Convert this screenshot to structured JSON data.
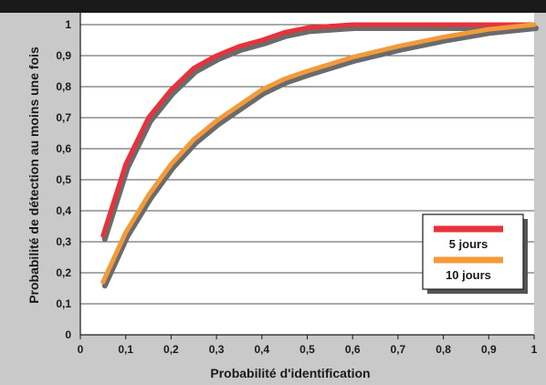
{
  "chart_data": {
    "type": "line",
    "xlabel": "Probabilité d'identification",
    "ylabel": "Probabilité de détection au moins une fois",
    "xlim": [
      0,
      1
    ],
    "ylim": [
      0,
      1
    ],
    "x_ticks": [
      "0",
      "0,1",
      "0,2",
      "0,3",
      "0,4",
      "0,5",
      "0,6",
      "0,7",
      "0,8",
      "0,9",
      "1"
    ],
    "y_ticks": [
      "0",
      "0,1",
      "0,2",
      "0,3",
      "0,4",
      "0,5",
      "0,6",
      "0,7",
      "0,8",
      "0,9",
      "1"
    ],
    "grid": "horizontal",
    "legend_position": "right",
    "series": [
      {
        "name": "5 jours",
        "color": "#e8323c",
        "x": [
          0.05,
          0.1,
          0.15,
          0.2,
          0.25,
          0.3,
          0.35,
          0.4,
          0.45,
          0.5,
          0.6,
          0.7,
          0.8,
          0.9,
          1.0
        ],
        "y": [
          0.32,
          0.55,
          0.7,
          0.79,
          0.86,
          0.9,
          0.93,
          0.95,
          0.975,
          0.99,
          1.0,
          1.0,
          1.0,
          1.0,
          1.0
        ]
      },
      {
        "name": "10 jours",
        "color": "#f39a3a",
        "x": [
          0.05,
          0.1,
          0.15,
          0.2,
          0.25,
          0.3,
          0.35,
          0.4,
          0.45,
          0.5,
          0.6,
          0.7,
          0.8,
          0.9,
          1.0
        ],
        "y": [
          0.17,
          0.33,
          0.45,
          0.55,
          0.63,
          0.69,
          0.74,
          0.79,
          0.825,
          0.85,
          0.895,
          0.93,
          0.96,
          0.985,
          1.0
        ]
      }
    ]
  }
}
